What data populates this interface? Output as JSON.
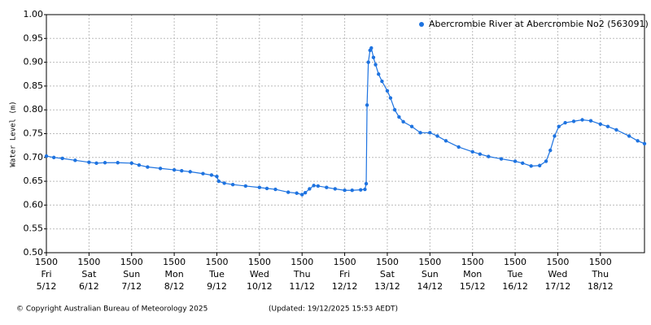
{
  "chart_data": {
    "type": "line",
    "y_label": "Water Level (m)",
    "copyright": "© Copyright Australian Bureau of Meteorology 2025",
    "updated": "(Updated: 19/12/2025 15:53 AEDT)",
    "xlim": [
      5.625,
      19.66
    ],
    "ylim": [
      0.5,
      1.0
    ],
    "xticks": [
      {
        "value": 5.625,
        "label": "1500",
        "day": "Fri",
        "date": "5/12"
      },
      {
        "value": 6.625,
        "label": "1500",
        "day": "Sat",
        "date": "6/12"
      },
      {
        "value": 7.625,
        "label": "1500",
        "day": "Sun",
        "date": "7/12"
      },
      {
        "value": 8.625,
        "label": "1500",
        "day": "Mon",
        "date": "8/12"
      },
      {
        "value": 9.625,
        "label": "1500",
        "day": "Tue",
        "date": "9/12"
      },
      {
        "value": 10.625,
        "label": "1500",
        "day": "Wed",
        "date": "10/12"
      },
      {
        "value": 11.625,
        "label": "1500",
        "day": "Thu",
        "date": "11/12"
      },
      {
        "value": 12.625,
        "label": "1500",
        "day": "Fri",
        "date": "12/12"
      },
      {
        "value": 13.625,
        "label": "1500",
        "day": "Sat",
        "date": "13/12"
      },
      {
        "value": 14.625,
        "label": "1500",
        "day": "Sun",
        "date": "14/12"
      },
      {
        "value": 15.625,
        "label": "1500",
        "day": "Mon",
        "date": "15/12"
      },
      {
        "value": 16.625,
        "label": "1500",
        "day": "Tue",
        "date": "16/12"
      },
      {
        "value": 17.625,
        "label": "1500",
        "day": "Wed",
        "date": "17/12"
      },
      {
        "value": 18.625,
        "label": "1500",
        "day": "Thu",
        "date": "18/12"
      }
    ],
    "yticks": [
      {
        "value": 0.5,
        "label": "0.50"
      },
      0.55,
      {
        "value": 0.6,
        "label": "0.60"
      },
      0.65,
      {
        "value": 0.7,
        "label": "0.70"
      },
      0.75,
      {
        "value": 0.8,
        "label": "0.80"
      },
      0.85,
      {
        "value": 0.9,
        "label": "0.90"
      },
      0.95,
      {
        "value": 1.0,
        "label": "1.00"
      }
    ],
    "grid": true,
    "legend": "top-right",
    "series": [
      {
        "name": "Abercrombie River at Abercrombie No2 (563091)",
        "color": "#1e73e0",
        "x": [
          5.625,
          5.8,
          6.0,
          6.3,
          6.625,
          6.8,
          7.0,
          7.3,
          7.625,
          7.8,
          8.0,
          8.3,
          8.625,
          8.8,
          9.0,
          9.3,
          9.5,
          9.625,
          9.67,
          9.8,
          10.0,
          10.3,
          10.625,
          10.8,
          11.0,
          11.3,
          11.5,
          11.625,
          11.7,
          11.8,
          11.9,
          12.0,
          12.2,
          12.4,
          12.625,
          12.8,
          13.0,
          13.1,
          13.13,
          13.15,
          13.18,
          13.22,
          13.25,
          13.3,
          13.35,
          13.42,
          13.5,
          13.625,
          13.7,
          13.8,
          13.9,
          14.0,
          14.2,
          14.4,
          14.625,
          14.8,
          15.0,
          15.3,
          15.625,
          15.8,
          16.0,
          16.3,
          16.625,
          16.8,
          17.0,
          17.2,
          17.35,
          17.45,
          17.55,
          17.65,
          17.8,
          18.0,
          18.2,
          18.4,
          18.625,
          18.8,
          19.0,
          19.3,
          19.5,
          19.66
        ],
        "values": [
          0.703,
          0.7,
          0.698,
          0.694,
          0.69,
          0.688,
          0.689,
          0.689,
          0.688,
          0.684,
          0.68,
          0.677,
          0.674,
          0.672,
          0.67,
          0.666,
          0.663,
          0.66,
          0.65,
          0.646,
          0.643,
          0.64,
          0.637,
          0.635,
          0.633,
          0.627,
          0.625,
          0.622,
          0.626,
          0.634,
          0.641,
          0.64,
          0.637,
          0.634,
          0.631,
          0.631,
          0.632,
          0.633,
          0.645,
          0.81,
          0.9,
          0.925,
          0.93,
          0.91,
          0.895,
          0.875,
          0.86,
          0.84,
          0.825,
          0.8,
          0.785,
          0.775,
          0.765,
          0.752,
          0.752,
          0.745,
          0.735,
          0.722,
          0.712,
          0.707,
          0.702,
          0.697,
          0.692,
          0.688,
          0.682,
          0.683,
          0.692,
          0.715,
          0.745,
          0.765,
          0.773,
          0.776,
          0.779,
          0.777,
          0.77,
          0.765,
          0.758,
          0.745,
          0.735,
          0.729
        ]
      }
    ]
  }
}
